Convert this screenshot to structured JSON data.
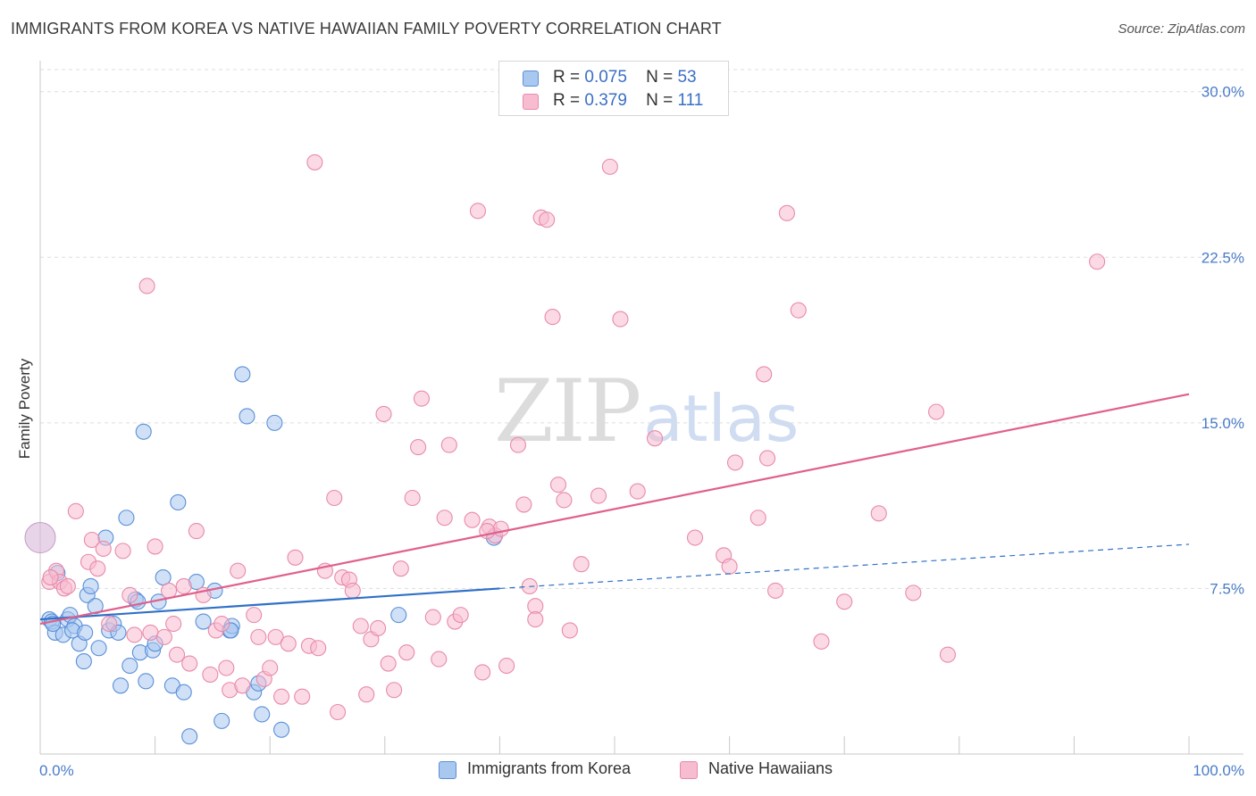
{
  "header": {
    "title": "IMMIGRANTS FROM KOREA VS NATIVE HAWAIIAN FAMILY POVERTY CORRELATION CHART",
    "source": "Source: ZipAtlas.com"
  },
  "watermark": {
    "zip": "ZIP",
    "atlas": "atlas"
  },
  "legend_top": [
    {
      "r_label": "R =",
      "r_value": "0.075",
      "n_label": "N =",
      "n_value": "53"
    },
    {
      "r_label": "R =",
      "r_value": "0.379",
      "n_label": "N =",
      "n_value": "111"
    }
  ],
  "legend_bottom": [
    {
      "label": "Immigrants from Korea"
    },
    {
      "label": "Native Hawaiians"
    }
  ],
  "colors": {
    "korea_fill": "#a9c8f0",
    "korea_stroke": "#5a8fd8",
    "korea_line": "#3070c8",
    "hawaii_fill": "#f7bcd0",
    "hawaii_stroke": "#e88aaa",
    "hawaii_line": "#e0608a",
    "grid": "#dddddd",
    "tick_text": "#4a7cc8"
  },
  "chart_data": {
    "type": "scatter",
    "title": "IMMIGRANTS FROM KOREA VS NATIVE HAWAIIAN FAMILY POVERTY CORRELATION CHART",
    "xlabel": "",
    "ylabel": "Family Poverty",
    "xlim": [
      0,
      100
    ],
    "ylim": [
      0,
      31
    ],
    "x_tick_labels": [
      {
        "value": 0,
        "label": "0.0%"
      },
      {
        "value": 100,
        "label": "100.0%"
      }
    ],
    "y_tick_labels": [
      {
        "value": 7.5,
        "label": "7.5%"
      },
      {
        "value": 15.0,
        "label": "15.0%"
      },
      {
        "value": 22.5,
        "label": "22.5%"
      },
      {
        "value": 30.0,
        "label": "30.0%"
      }
    ],
    "grid": true,
    "series": [
      {
        "name": "Immigrants from Korea",
        "r": 0.075,
        "n": 53,
        "trend": {
          "x0": 0,
          "y0": 6.1,
          "x1": 40,
          "y1": 7.5,
          "dashed_to_x": 100,
          "dashed_to_y": 9.5
        },
        "points": [
          [
            0.8,
            6.1
          ],
          [
            1.0,
            6.0
          ],
          [
            1.3,
            5.5
          ],
          [
            1.5,
            8.2
          ],
          [
            2.0,
            5.4
          ],
          [
            2.4,
            6.1
          ],
          [
            2.6,
            6.3
          ],
          [
            3.0,
            5.8
          ],
          [
            3.4,
            5.0
          ],
          [
            3.8,
            4.2
          ],
          [
            4.1,
            7.2
          ],
          [
            4.4,
            7.6
          ],
          [
            4.8,
            6.7
          ],
          [
            5.1,
            4.8
          ],
          [
            5.7,
            9.8
          ],
          [
            6.0,
            5.6
          ],
          [
            6.4,
            5.9
          ],
          [
            6.8,
            5.5
          ],
          [
            7.0,
            3.1
          ],
          [
            7.5,
            10.7
          ],
          [
            7.8,
            4.0
          ],
          [
            8.3,
            7.0
          ],
          [
            8.7,
            4.6
          ],
          [
            9.0,
            14.6
          ],
          [
            9.2,
            3.3
          ],
          [
            9.8,
            4.7
          ],
          [
            10.0,
            5.0
          ],
          [
            10.3,
            6.9
          ],
          [
            10.7,
            8.0
          ],
          [
            11.5,
            3.1
          ],
          [
            12.0,
            11.4
          ],
          [
            12.5,
            2.8
          ],
          [
            13.0,
            0.8
          ],
          [
            13.6,
            7.8
          ],
          [
            14.2,
            6.0
          ],
          [
            15.2,
            7.4
          ],
          [
            15.8,
            1.5
          ],
          [
            16.5,
            5.6
          ],
          [
            16.7,
            5.8
          ],
          [
            17.6,
            17.2
          ],
          [
            18.0,
            15.3
          ],
          [
            18.6,
            2.8
          ],
          [
            19.0,
            3.2
          ],
          [
            19.3,
            1.8
          ],
          [
            20.4,
            15.0
          ],
          [
            21.0,
            1.1
          ],
          [
            31.2,
            6.3
          ],
          [
            39.5,
            9.8
          ],
          [
            2.8,
            5.6
          ],
          [
            1.1,
            5.9
          ],
          [
            3.9,
            5.5
          ],
          [
            8.5,
            6.9
          ],
          [
            16.6,
            5.6
          ]
        ]
      },
      {
        "name": "Native Hawaiians",
        "r": 0.379,
        "n": 111,
        "trend": {
          "x0": 0,
          "y0": 5.9,
          "x1": 100,
          "y1": 16.3
        },
        "points": [
          [
            0.8,
            7.8
          ],
          [
            1.4,
            8.3
          ],
          [
            1.7,
            7.8
          ],
          [
            2.1,
            7.5
          ],
          [
            3.1,
            11.0
          ],
          [
            4.2,
            8.7
          ],
          [
            4.5,
            9.7
          ],
          [
            5.0,
            8.4
          ],
          [
            5.5,
            9.3
          ],
          [
            6.0,
            5.9
          ],
          [
            7.2,
            9.2
          ],
          [
            7.8,
            7.2
          ],
          [
            8.2,
            5.4
          ],
          [
            9.3,
            21.2
          ],
          [
            9.6,
            5.5
          ],
          [
            10.0,
            9.4
          ],
          [
            10.8,
            5.3
          ],
          [
            11.2,
            7.4
          ],
          [
            11.6,
            5.9
          ],
          [
            11.9,
            4.5
          ],
          [
            12.5,
            7.6
          ],
          [
            13.0,
            4.1
          ],
          [
            13.6,
            10.1
          ],
          [
            14.2,
            7.2
          ],
          [
            14.8,
            3.6
          ],
          [
            15.3,
            5.6
          ],
          [
            15.8,
            5.9
          ],
          [
            16.2,
            3.9
          ],
          [
            16.5,
            2.9
          ],
          [
            17.2,
            8.3
          ],
          [
            17.6,
            3.1
          ],
          [
            18.6,
            6.3
          ],
          [
            19.0,
            5.3
          ],
          [
            19.5,
            3.4
          ],
          [
            20.0,
            3.9
          ],
          [
            20.5,
            5.3
          ],
          [
            21.0,
            2.6
          ],
          [
            21.6,
            5.0
          ],
          [
            22.2,
            8.9
          ],
          [
            22.8,
            2.6
          ],
          [
            23.4,
            4.9
          ],
          [
            23.9,
            26.8
          ],
          [
            24.2,
            4.8
          ],
          [
            24.8,
            8.3
          ],
          [
            25.6,
            11.6
          ],
          [
            25.9,
            1.9
          ],
          [
            26.3,
            8.0
          ],
          [
            26.9,
            7.9
          ],
          [
            27.2,
            7.4
          ],
          [
            27.9,
            5.8
          ],
          [
            28.4,
            2.7
          ],
          [
            28.8,
            5.2
          ],
          [
            29.4,
            5.7
          ],
          [
            29.9,
            15.4
          ],
          [
            30.3,
            4.1
          ],
          [
            30.8,
            2.9
          ],
          [
            31.4,
            8.4
          ],
          [
            31.9,
            4.6
          ],
          [
            32.4,
            11.6
          ],
          [
            32.9,
            13.9
          ],
          [
            33.2,
            16.1
          ],
          [
            34.2,
            6.2
          ],
          [
            34.7,
            4.3
          ],
          [
            35.2,
            10.7
          ],
          [
            35.6,
            14.0
          ],
          [
            36.1,
            6.0
          ],
          [
            36.6,
            6.3
          ],
          [
            37.6,
            10.6
          ],
          [
            38.1,
            24.6
          ],
          [
            38.5,
            3.7
          ],
          [
            39.1,
            10.3
          ],
          [
            39.6,
            9.9
          ],
          [
            40.1,
            10.2
          ],
          [
            40.6,
            4.0
          ],
          [
            41.6,
            14.0
          ],
          [
            42.1,
            11.3
          ],
          [
            42.6,
            7.6
          ],
          [
            43.1,
            6.7
          ],
          [
            43.1,
            6.1
          ],
          [
            43.6,
            24.3
          ],
          [
            44.1,
            24.2
          ],
          [
            44.6,
            19.8
          ],
          [
            45.1,
            12.2
          ],
          [
            45.6,
            11.5
          ],
          [
            46.1,
            5.6
          ],
          [
            47.1,
            8.6
          ],
          [
            48.6,
            11.7
          ],
          [
            49.6,
            26.6
          ],
          [
            50.5,
            19.7
          ],
          [
            52.0,
            11.9
          ],
          [
            53.5,
            14.3
          ],
          [
            57.0,
            9.8
          ],
          [
            59.5,
            9.0
          ],
          [
            60.0,
            8.5
          ],
          [
            60.5,
            13.2
          ],
          [
            62.5,
            10.7
          ],
          [
            63.0,
            17.2
          ],
          [
            63.3,
            13.4
          ],
          [
            64.0,
            7.4
          ],
          [
            65.0,
            24.5
          ],
          [
            66.0,
            20.1
          ],
          [
            68.0,
            5.1
          ],
          [
            70.0,
            6.9
          ],
          [
            73.0,
            10.9
          ],
          [
            76.0,
            7.3
          ],
          [
            78.0,
            15.5
          ],
          [
            79.0,
            4.5
          ],
          [
            92.0,
            22.3
          ],
          [
            0.9,
            8.0
          ],
          [
            2.4,
            7.6
          ],
          [
            38.9,
            10.1
          ]
        ]
      }
    ]
  }
}
